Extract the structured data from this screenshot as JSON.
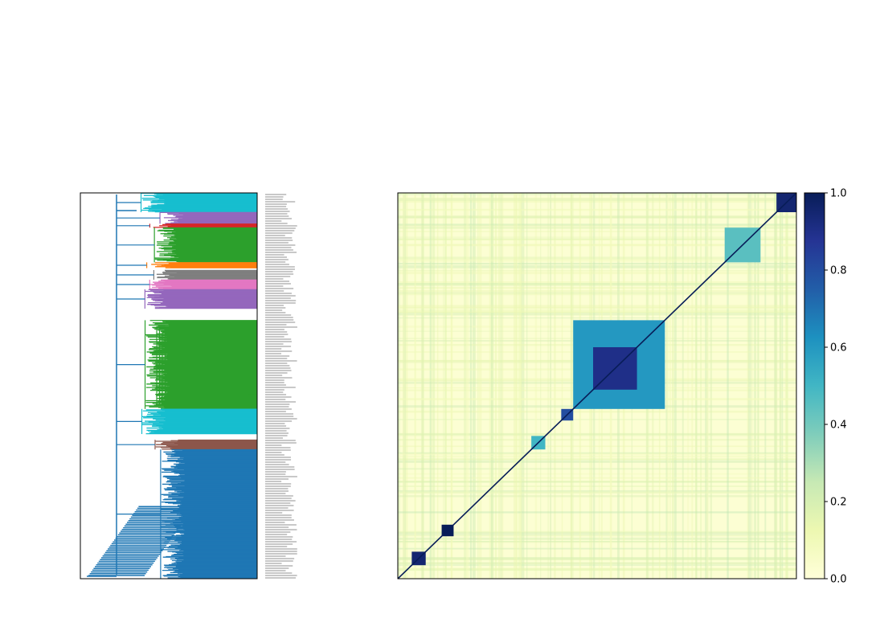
{
  "chart_data": [
    {
      "type": "dendrogram",
      "orientation": "left",
      "title": "",
      "xlabel": "",
      "ylabel": "",
      "leaf_labels_legible": false,
      "cluster_colors": [
        "#17becf",
        "#9467bd",
        "#d62728",
        "#2ca02c",
        "#ff7f0e",
        "#7f7f7f",
        "#e377c2",
        "#17becf",
        "#8c564b",
        "#bcbd22",
        "#1f77b4"
      ],
      "clusters": [
        {
          "color": "#17becf",
          "rows": [
            0.0,
            0.05
          ]
        },
        {
          "color": "#9467bd",
          "rows": [
            0.05,
            0.08
          ]
        },
        {
          "color": "#d62728",
          "rows": [
            0.08,
            0.09
          ]
        },
        {
          "color": "#2ca02c",
          "rows": [
            0.09,
            0.18
          ]
        },
        {
          "color": "#ff7f0e",
          "rows": [
            0.18,
            0.195
          ]
        },
        {
          "color": "#7f7f7f",
          "rows": [
            0.2,
            0.225
          ]
        },
        {
          "color": "#e377c2",
          "rows": [
            0.225,
            0.25
          ]
        },
        {
          "color": "#9467bd",
          "rows": [
            0.25,
            0.3
          ]
        },
        {
          "color": "#2ca02c",
          "rows": [
            0.33,
            0.56
          ]
        },
        {
          "color": "#17becf",
          "rows": [
            0.56,
            0.625
          ]
        },
        {
          "color": "#8c564b",
          "rows": [
            0.64,
            0.665
          ]
        },
        {
          "color": "#1f77b4",
          "rows": [
            0.665,
            1.0
          ]
        }
      ]
    },
    {
      "type": "heatmap",
      "title": "",
      "xlabel": "",
      "ylabel": "",
      "colormap": "YlGnBu",
      "value_range": [
        0,
        1
      ],
      "diagonal_value": 1.0,
      "blocks": [
        {
          "range": [
            0.0,
            0.05
          ],
          "value": 0.95
        },
        {
          "range": [
            0.09,
            0.18
          ],
          "value": 0.45
        },
        {
          "range": [
            0.33,
            0.56
          ],
          "value": 0.6
        },
        {
          "range": [
            0.4,
            0.51
          ],
          "value": 0.9
        },
        {
          "range": [
            0.56,
            0.59
          ],
          "value": 0.8
        },
        {
          "range": [
            0.63,
            0.665
          ],
          "value": 0.5
        },
        {
          "range": [
            0.86,
            0.89
          ],
          "value": 1.0
        },
        {
          "range": [
            0.93,
            0.965
          ],
          "value": 0.95
        }
      ],
      "colorbar": {
        "ticks": [
          "0.0",
          "0.2",
          "0.4",
          "0.6",
          "0.8",
          "1.0"
        ],
        "tick_values": [
          0.0,
          0.2,
          0.4,
          0.6,
          0.8,
          1.0
        ]
      }
    }
  ]
}
